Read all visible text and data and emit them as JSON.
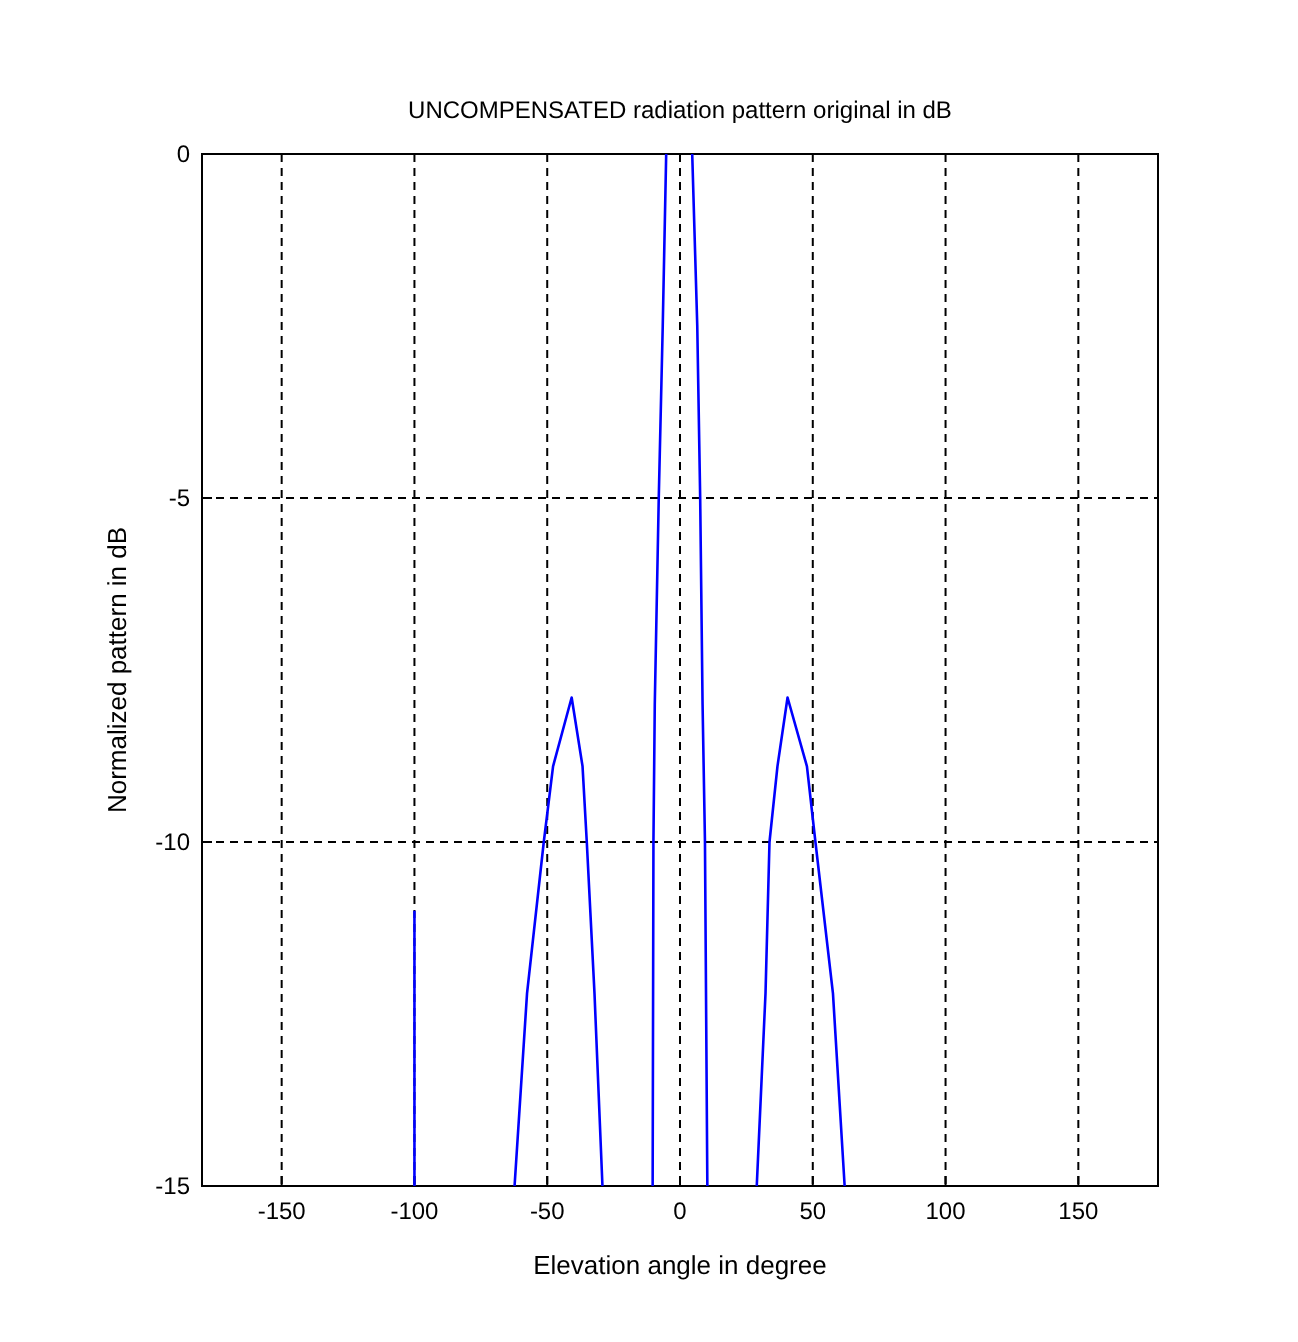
{
  "chart_data": {
    "type": "line",
    "title": "UNCOMPENSATED radiation pattern original in dB",
    "xlabel": "Elevation angle in degree",
    "ylabel": "Normalized pattern in dB",
    "xlim": [
      -180,
      180
    ],
    "xticks": [
      -150,
      -100,
      -50,
      0,
      50,
      100,
      150
    ],
    "ylim": [
      -15,
      0
    ],
    "yticks": [
      -15,
      -10,
      -5,
      0
    ],
    "grid": true,
    "marker": "none",
    "series": [
      {
        "color": "#0000ff",
        "x": [
          -100,
          -100
        ],
        "values": [
          -15,
          -11
        ]
      },
      {
        "color": "#0000ff",
        "x": [
          -62.3,
          -57.6,
          -51.3,
          -47.8,
          -40.8,
          -36.7,
          -35.1,
          -32.2,
          -29.2
        ],
        "values": [
          -15,
          -12.2,
          -10,
          -8.9,
          -7.9,
          -8.9,
          -10,
          -12.2,
          -15
        ]
      },
      {
        "color": "#0000ff",
        "x": [
          -10.3,
          -10,
          -9.5,
          -8,
          -6.5,
          -5.2
        ],
        "values": [
          -15,
          -10,
          -8,
          -5,
          -2.5,
          0
        ]
      },
      {
        "color": "#0000ff",
        "x": [
          4.6,
          6.5,
          7.6,
          8.5,
          9.4,
          10.3
        ],
        "values": [
          0,
          -2.5,
          -5,
          -8,
          -10,
          -15
        ]
      },
      {
        "color": "#0000ff",
        "x": [
          28.9,
          32.2,
          33.7,
          36.7,
          40.5,
          47.8,
          51,
          57.6,
          62
        ],
        "values": [
          -15,
          -12.2,
          -10,
          -8.9,
          -7.9,
          -8.9,
          -10,
          -12.2,
          -15
        ]
      }
    ]
  }
}
